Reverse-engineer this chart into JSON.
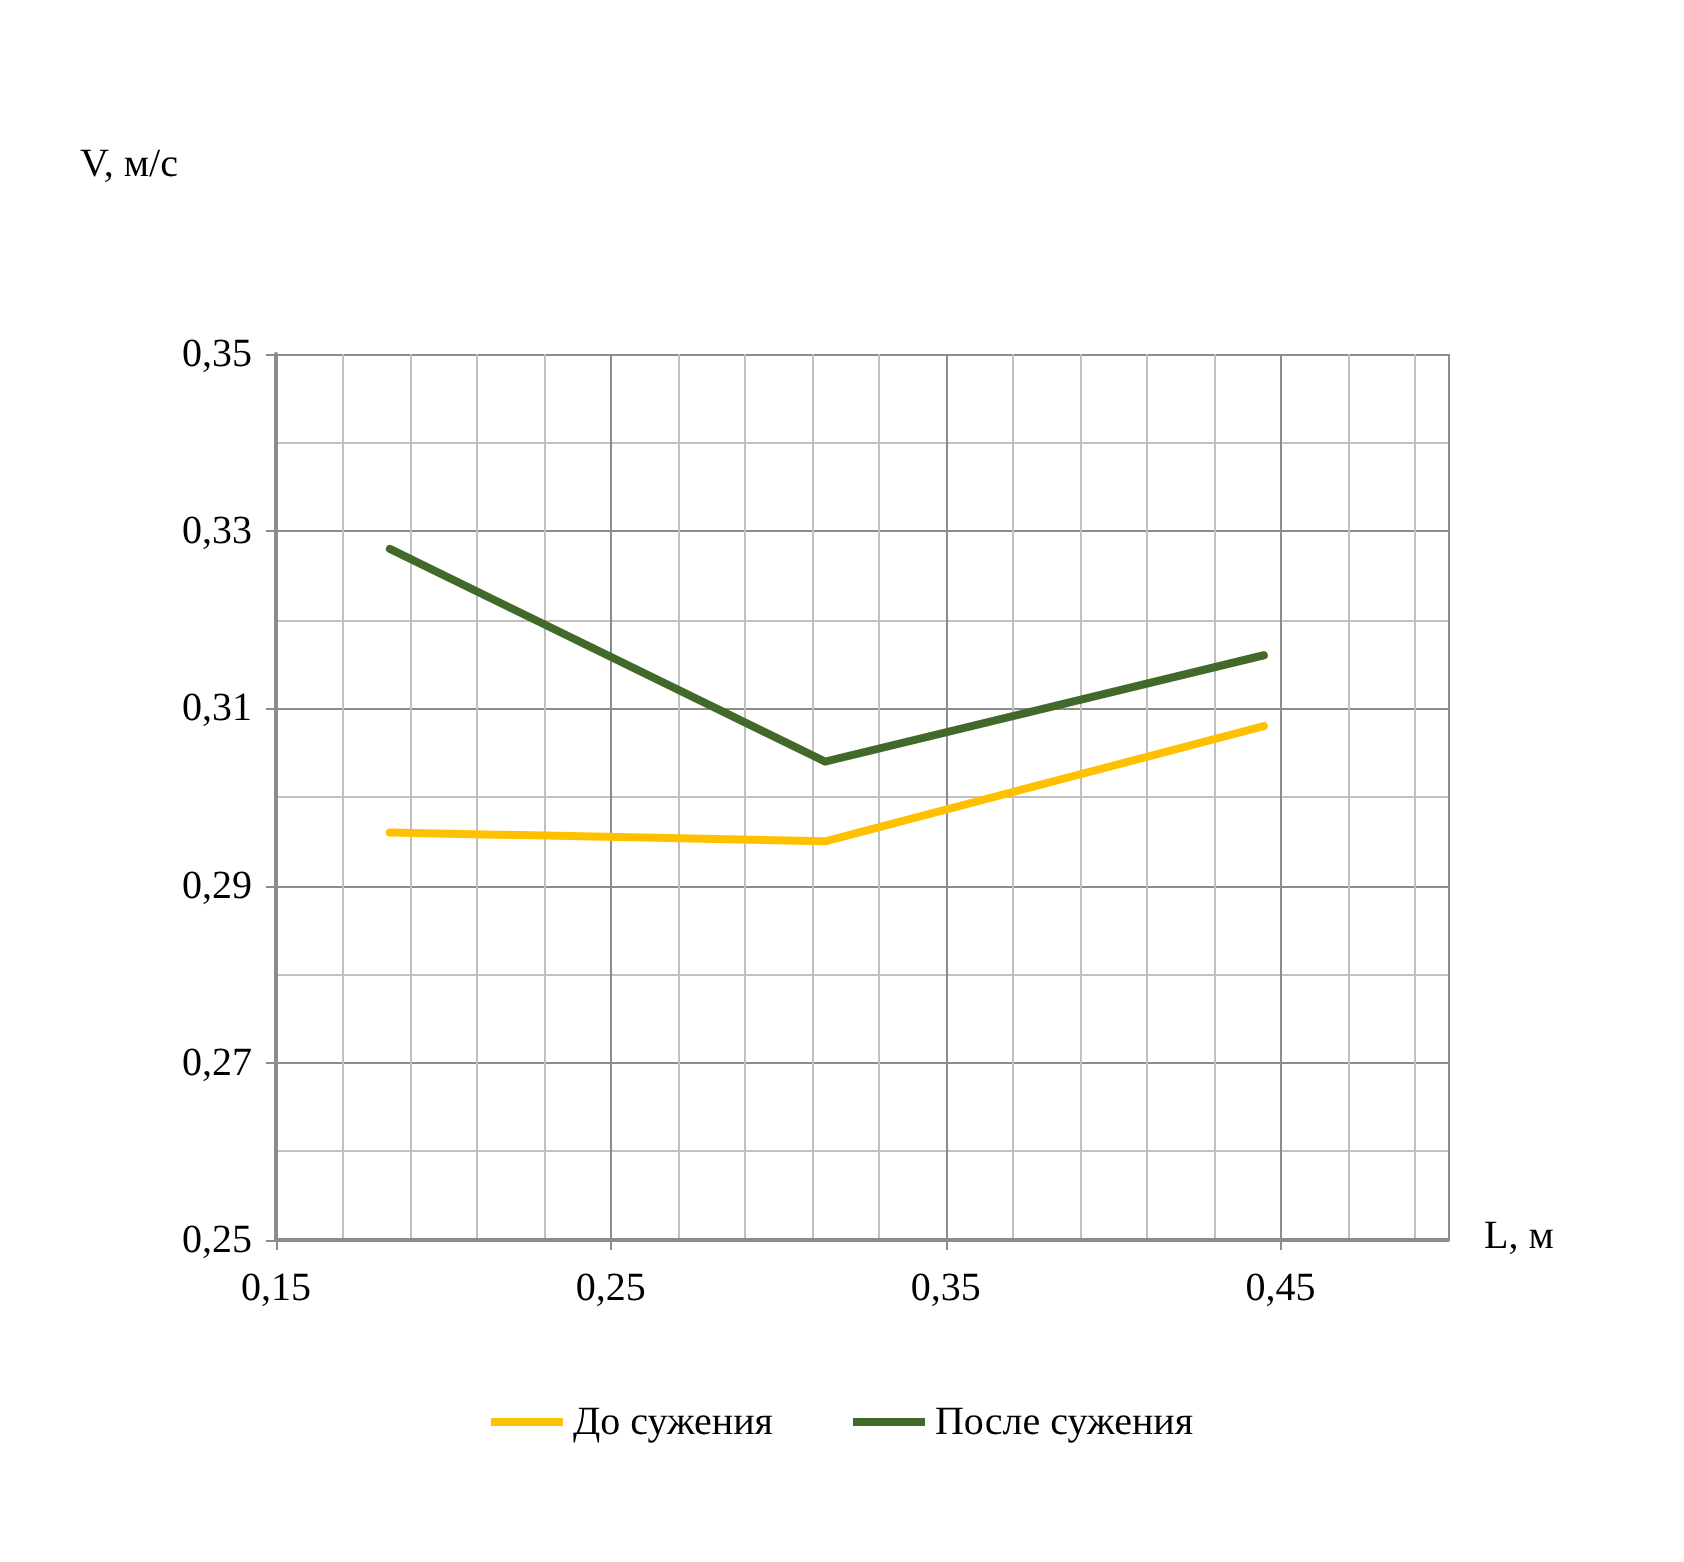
{
  "chart_data": {
    "type": "line",
    "xlabel": "L, м",
    "ylabel": "V, м/с",
    "xlim": [
      0.15,
      0.5
    ],
    "xticks": [
      {
        "value": 0.15,
        "label": "0,15"
      },
      {
        "value": 0.25,
        "label": "0,25"
      },
      {
        "value": 0.35,
        "label": "0,35"
      },
      {
        "value": 0.45,
        "label": "0,45"
      }
    ],
    "ylim": [
      0.25,
      0.35
    ],
    "yticks": [
      {
        "value": 0.25,
        "label": "0,25"
      },
      {
        "value": 0.27,
        "label": "0,27"
      },
      {
        "value": 0.29,
        "label": "0,29"
      },
      {
        "value": 0.31,
        "label": "0,31"
      },
      {
        "value": 0.33,
        "label": "0,33"
      },
      {
        "value": 0.35,
        "label": "0,35"
      }
    ],
    "grid": true,
    "legend": "bottom",
    "marker": "none",
    "line_style": "solid",
    "series": [
      {
        "name": "До сужения",
        "color": "#ffc000",
        "x": [
          0.184,
          0.314,
          0.445
        ],
        "values": [
          0.296,
          0.295,
          0.308
        ]
      },
      {
        "name": "После сужения",
        "color": "#41692a",
        "x": [
          0.184,
          0.314,
          0.445
        ],
        "values": [
          0.328,
          0.304,
          0.316
        ]
      }
    ]
  }
}
